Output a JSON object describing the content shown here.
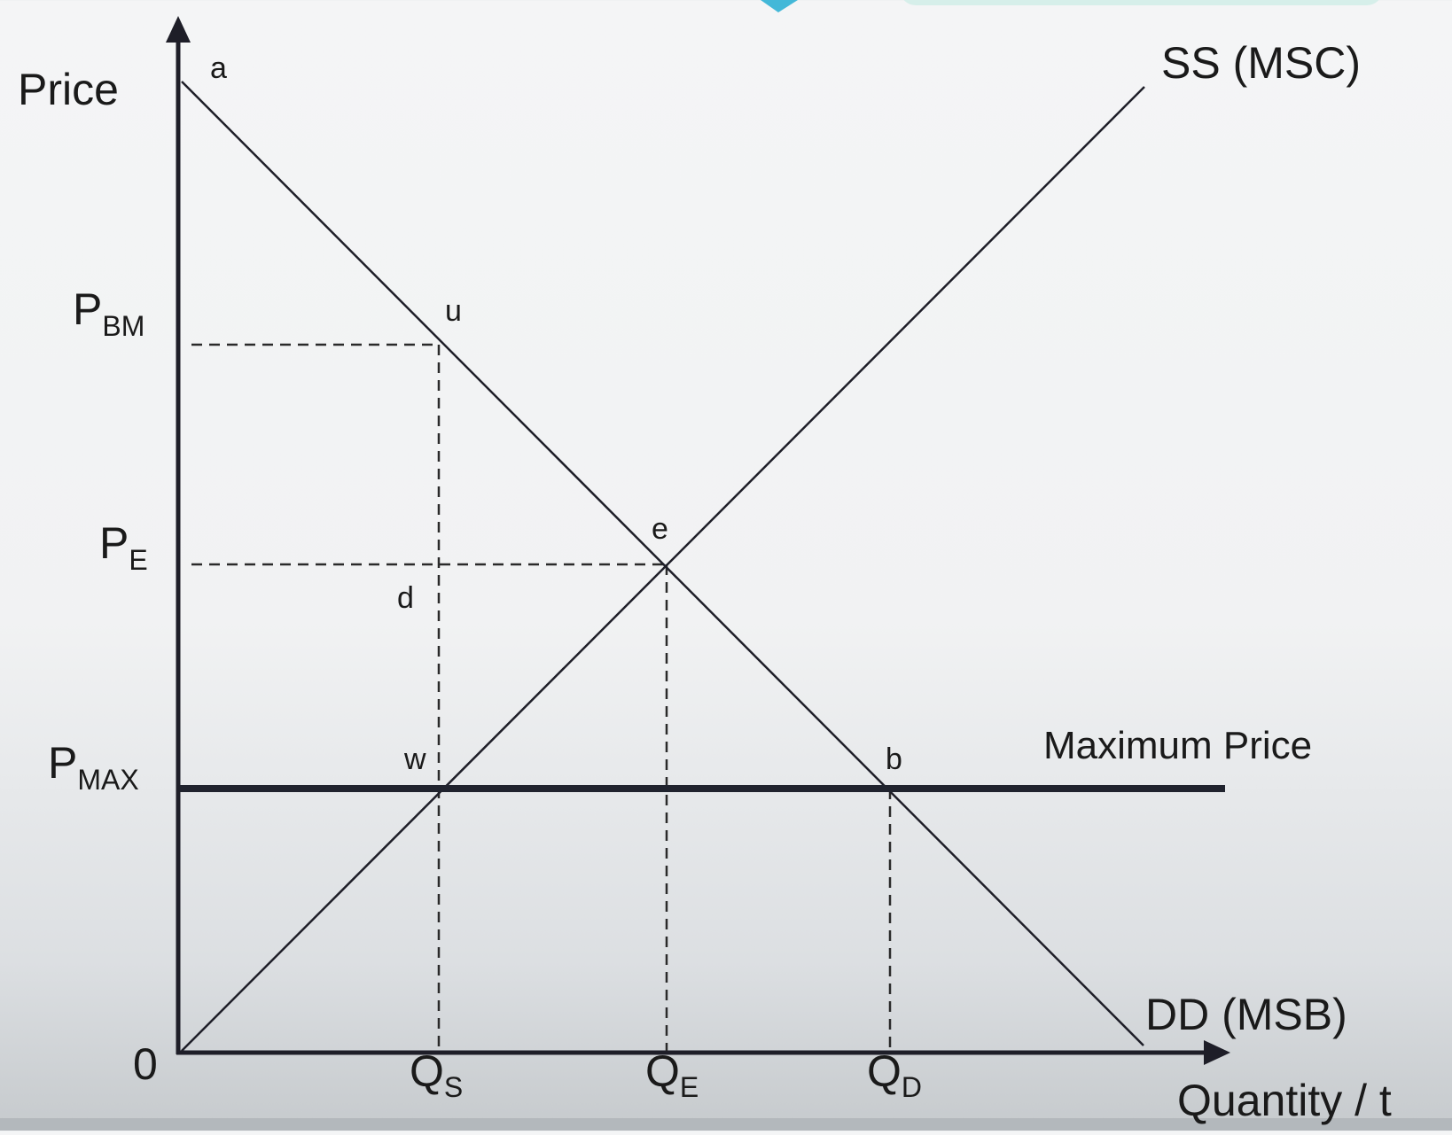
{
  "diagram": {
    "y_axis_label": "Price",
    "x_axis_label": "Quantity / t",
    "origin_label": "0",
    "supply_label": "SS (MSC)",
    "demand_label": "DD (MSB)",
    "ceiling_label": "Maximum Price",
    "price_labels": {
      "p_bm": {
        "main": "P",
        "sub": "BM"
      },
      "p_e": {
        "main": "P",
        "sub": "E"
      },
      "p_max": {
        "main": "P",
        "sub": "MAX"
      }
    },
    "quantity_labels": {
      "q_s": {
        "main": "Q",
        "sub": "S"
      },
      "q_e": {
        "main": "Q",
        "sub": "E"
      },
      "q_d": {
        "main": "Q",
        "sub": "D"
      }
    },
    "points": {
      "a": "a",
      "u": "u",
      "e": "e",
      "d": "d",
      "w": "w",
      "b": "b"
    },
    "colors": {
      "line": "#1e1e28",
      "ceiling": "#20232e",
      "accent": "#43b8d8",
      "accent_light": "#d6efea"
    }
  }
}
